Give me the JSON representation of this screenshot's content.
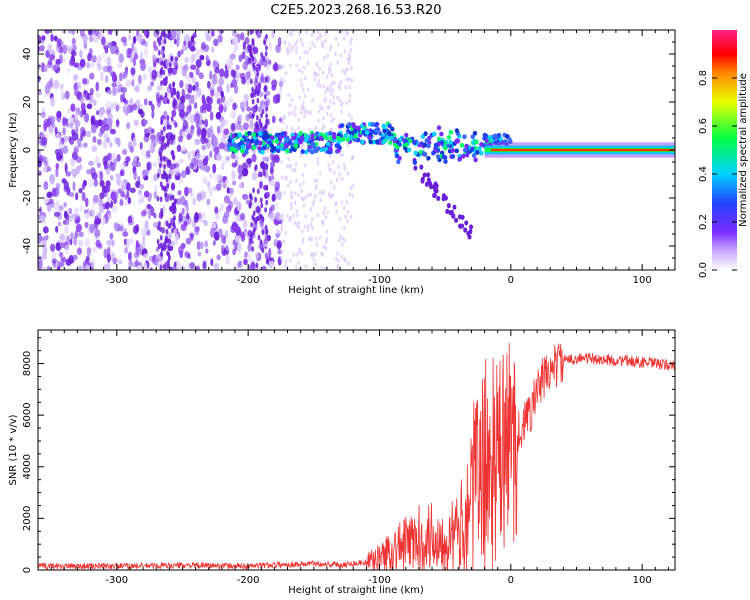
{
  "title": "C2E5.2023.268.16.53.R20",
  "chart_data": [
    {
      "type": "heatmap",
      "xlabel": "Height of straight line (km)",
      "ylabel": "Frequency (Hz)",
      "xlim": [
        -360,
        125
      ],
      "ylim": [
        -50,
        50
      ],
      "x_ticks": [
        -300,
        -200,
        -100,
        0,
        100
      ],
      "y_ticks": [
        -40,
        -20,
        0,
        20,
        40
      ],
      "colorbar": {
        "label": "Normalized spectral amplitude",
        "range": [
          0,
          1
        ],
        "ticks": [
          0.0,
          0.2,
          0.4,
          0.6,
          0.8
        ]
      },
      "regions": [
        {
          "x": [
            -360,
            -175
          ],
          "freq_half_width": 50,
          "amplitude": 0.15,
          "note": "scattered noise"
        },
        {
          "x": [
            -175,
            -120
          ],
          "freq_half_width": 50,
          "amplitude": 0.05,
          "note": "faint noise"
        },
        {
          "x": [
            -215,
            0
          ],
          "center_freq": 3,
          "amplitude": 0.45,
          "note": "signal band"
        },
        {
          "x": [
            0,
            125
          ],
          "center_freq": 0,
          "amplitude": 0.9,
          "note": "strong line at 0 Hz"
        }
      ]
    },
    {
      "type": "line",
      "xlabel": "Height of straight line (km)",
      "ylabel": "SNR (10 * v/v)",
      "xlim": [
        -360,
        125
      ],
      "ylim": [
        0,
        9300
      ],
      "x_ticks": [
        -300,
        -200,
        -100,
        0,
        100
      ],
      "y_ticks": [
        0,
        2000,
        4000,
        6000,
        8000
      ],
      "color": "#ee3333",
      "series": [
        {
          "x": [
            -360,
            -300,
            -250,
            -200,
            -180,
            -150,
            -130,
            -110,
            -100,
            -90,
            -80,
            -70,
            -60,
            -50,
            -40,
            -35,
            -30,
            -25,
            -20,
            -15,
            -10,
            -5,
            0,
            5,
            10,
            15,
            20,
            25,
            30,
            40,
            50,
            60,
            70,
            80,
            90,
            100,
            110,
            125
          ],
          "values": [
            150,
            150,
            180,
            150,
            200,
            250,
            200,
            300,
            500,
            800,
            1000,
            1200,
            1300,
            1200,
            1400,
            2000,
            3000,
            3500,
            4000,
            4200,
            4000,
            4600,
            5000,
            5300,
            5600,
            6200,
            6900,
            7400,
            7800,
            8100,
            8200,
            8200,
            8150,
            8100,
            8100,
            8050,
            8000,
            7900
          ]
        }
      ]
    }
  ]
}
